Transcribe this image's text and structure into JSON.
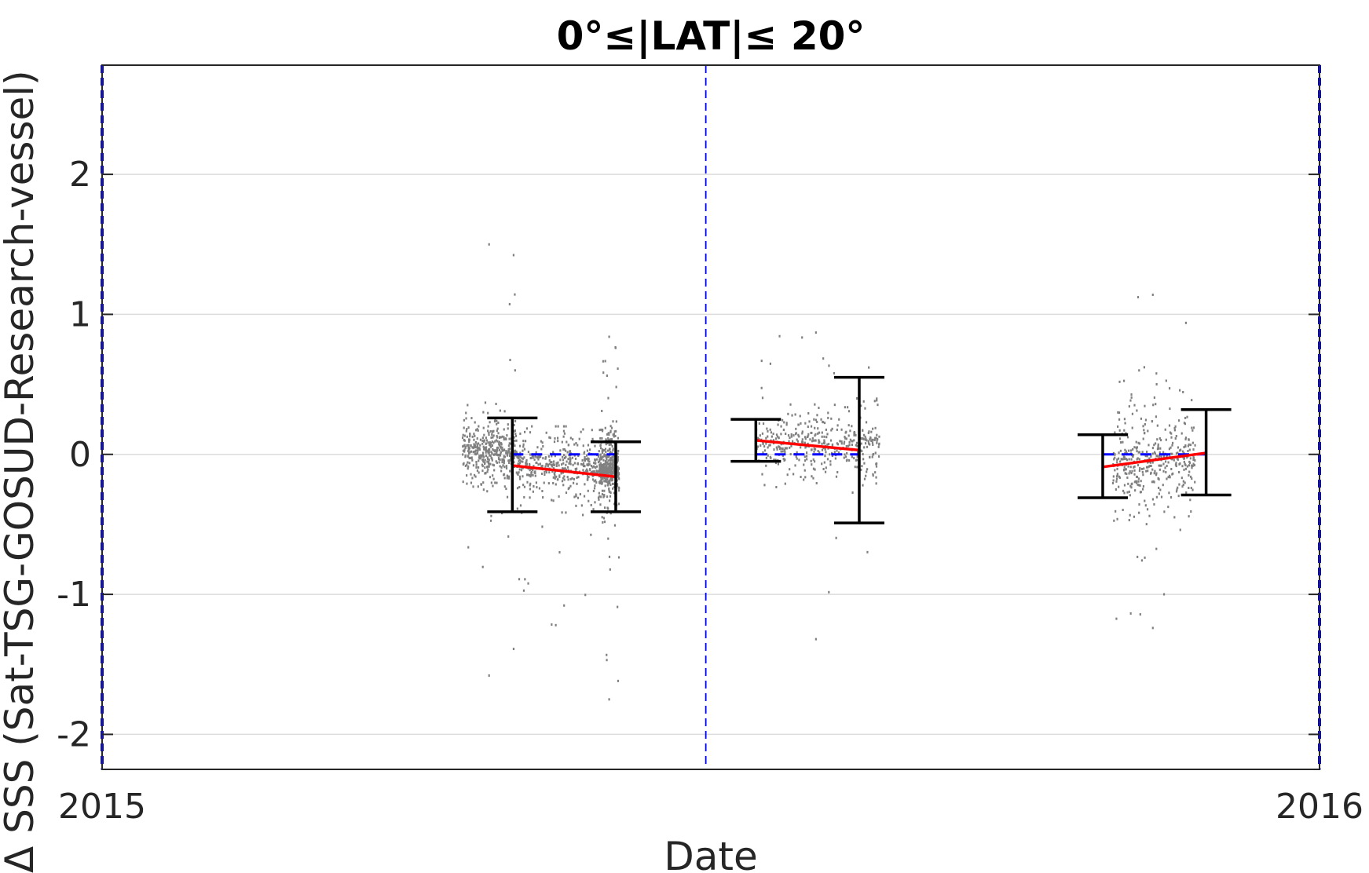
{
  "chart_data": {
    "type": "scatter",
    "title": "0°≤|LAT|≤ 20°",
    "xlabel": "Date",
    "ylabel": "Δ SSS (Sat-TSG-GOSUD-Research-vessel)",
    "x_tick_labels": [
      "2015",
      "2016"
    ],
    "xlim": [
      "2015-01-01",
      "2016-01-01"
    ],
    "ylim": [
      -2.25,
      2.78
    ],
    "y_ticks": [
      -2,
      -1,
      0,
      1,
      2
    ],
    "y_tick_labels": [
      "-2",
      "-1",
      "0",
      "1",
      "2"
    ],
    "grid": true,
    "colors": {
      "points": "#808080",
      "trend": "#ff0000",
      "zero_line": "#0000ff",
      "error_bars": "#000000",
      "period_lines": "#0000ff",
      "grid": "#dcdcdc"
    },
    "period_boundaries": [
      "2015-01-01",
      "2015-07-01",
      "2016-01-01"
    ],
    "error_bars": [
      {
        "x": "2015-05-04",
        "low": -0.41,
        "high": 0.26
      },
      {
        "x": "2015-06-04",
        "low": -0.41,
        "high": 0.09
      },
      {
        "x": "2015-07-16",
        "low": -0.05,
        "high": 0.25
      },
      {
        "x": "2015-08-16",
        "low": -0.49,
        "high": 0.55
      },
      {
        "x": "2015-10-28",
        "low": -0.31,
        "high": 0.14
      },
      {
        "x": "2015-11-28",
        "low": -0.29,
        "high": 0.32
      }
    ],
    "trend_lines": [
      {
        "x": [
          "2015-05-04",
          "2015-06-04"
        ],
        "y": [
          -0.08,
          -0.16
        ]
      },
      {
        "x": [
          "2015-07-16",
          "2015-08-16"
        ],
        "y": [
          0.1,
          0.03
        ]
      },
      {
        "x": [
          "2015-10-28",
          "2015-11-28"
        ],
        "y": [
          -0.09,
          0.01
        ]
      }
    ],
    "zero_reference": [
      {
        "x": [
          "2015-05-04",
          "2015-06-04"
        ],
        "y": [
          0,
          0
        ]
      },
      {
        "x": [
          "2015-07-16",
          "2015-08-16"
        ],
        "y": [
          0,
          0
        ]
      },
      {
        "x": [
          "2015-10-28",
          "2015-11-28"
        ],
        "y": [
          0,
          0
        ]
      }
    ],
    "point_clusters": [
      {
        "x_range": [
          "2015-04-19",
          "2015-05-05"
        ],
        "mean": 0.02,
        "spread": 0.16,
        "min": -1.58,
        "max": 1.5
      },
      {
        "x_range": [
          "2015-05-05",
          "2015-05-30"
        ],
        "mean": -0.08,
        "spread": 0.18,
        "min": -1.22,
        "max": 0.2
      },
      {
        "x_range": [
          "2015-05-30",
          "2015-06-05"
        ],
        "mean": -0.1,
        "spread": 0.18,
        "min": -1.75,
        "max": 0.84
      },
      {
        "x_range": [
          "2015-07-16",
          "2015-08-22"
        ],
        "mean": 0.08,
        "spread": 0.18,
        "min": -1.32,
        "max": 0.87
      },
      {
        "x_range": [
          "2015-10-31",
          "2015-11-25"
        ],
        "mean": -0.05,
        "spread": 0.28,
        "min": -1.24,
        "max": 1.14
      }
    ]
  }
}
